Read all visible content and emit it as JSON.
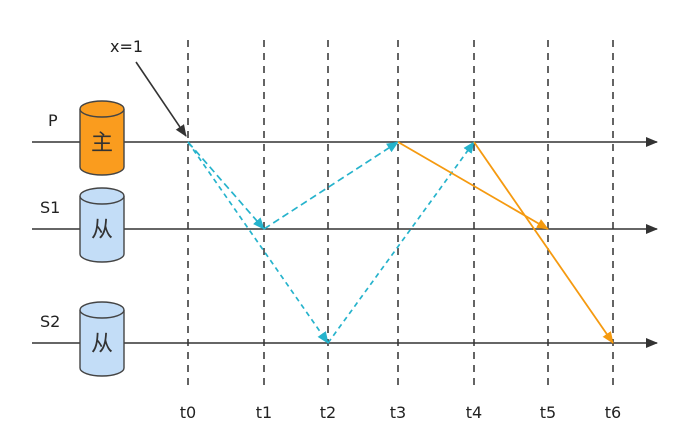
{
  "annotation": {
    "label": "x=1"
  },
  "timeline": [
    "t0",
    "t1",
    "t2",
    "t3",
    "t4",
    "t5",
    "t6"
  ],
  "nodes": [
    {
      "id": "P",
      "name": "P",
      "db_label": "主",
      "fill": "#fa9c1e"
    },
    {
      "id": "S1",
      "name": "S1",
      "db_label": "从",
      "fill": "#c3ddf7"
    },
    {
      "id": "S2",
      "name": "S2",
      "db_label": "从",
      "fill": "#c3ddf7"
    }
  ],
  "messages": [
    {
      "from": "P",
      "to": "S1",
      "start": "t0",
      "end": "t1",
      "color": "#26b3cc",
      "style": "dashed"
    },
    {
      "from": "P",
      "to": "S2",
      "start": "t0",
      "end": "t2",
      "color": "#26b3cc",
      "style": "dashed"
    },
    {
      "from": "S1",
      "to": "P",
      "start": "t1",
      "end": "t3",
      "color": "#26b3cc",
      "style": "dashed"
    },
    {
      "from": "S2",
      "to": "P",
      "start": "t2",
      "end": "t4",
      "color": "#26b3cc",
      "style": "dashed"
    },
    {
      "from": "P",
      "to": "S1",
      "start": "t3",
      "end": "t5",
      "color": "#f59a10",
      "style": "solid"
    },
    {
      "from": "P",
      "to": "S2",
      "start": "t4",
      "end": "t6",
      "color": "#f59a10",
      "style": "solid"
    }
  ]
}
